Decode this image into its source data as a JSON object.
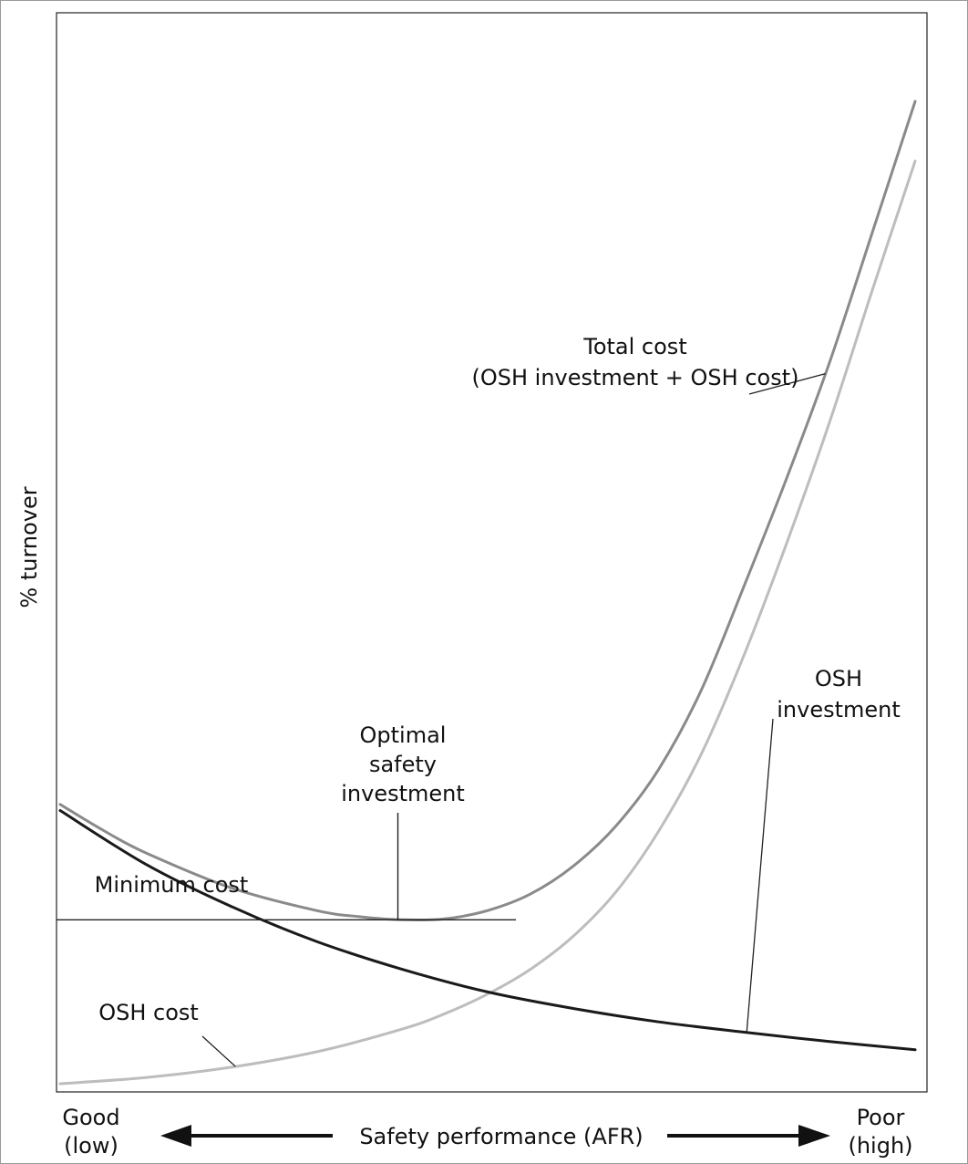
{
  "chart_data": {
    "type": "line",
    "title": "",
    "ylabel": "% turnover",
    "xlabel": "Safety performance (AFR)",
    "x_end_labels": {
      "left": [
        "Good",
        "(low)"
      ],
      "right": [
        "Poor",
        "(high)"
      ]
    },
    "xlim": [
      0,
      1
    ],
    "ylim": [
      0,
      1
    ],
    "grid": false,
    "legend": "none",
    "series": [
      {
        "key": "total",
        "color": "#8a8a8a",
        "x": [
          0,
          0.05,
          0.1,
          0.2,
          0.3,
          0.35,
          0.4,
          0.45,
          0.5,
          0.55,
          0.6,
          0.65,
          0.7,
          0.75,
          0.8,
          0.85,
          0.9,
          0.95,
          1.0
        ],
        "y": [
          0.271,
          0.246,
          0.224,
          0.19,
          0.168,
          0.162,
          0.159,
          0.16,
          0.168,
          0.184,
          0.211,
          0.25,
          0.305,
          0.382,
          0.483,
          0.588,
          0.7,
          0.826,
          0.953
        ]
      },
      {
        "key": "osh_cost",
        "color": "#bdbdbd",
        "x": [
          0,
          0.1,
          0.2,
          0.3,
          0.4,
          0.45,
          0.5,
          0.55,
          0.6,
          0.65,
          0.7,
          0.75,
          0.8,
          0.85,
          0.9,
          0.95,
          1.0
        ],
        "y": [
          0.0,
          0.006,
          0.016,
          0.031,
          0.053,
          0.068,
          0.087,
          0.111,
          0.143,
          0.186,
          0.245,
          0.32,
          0.416,
          0.525,
          0.642,
          0.77,
          0.895
        ]
      },
      {
        "key": "osh_investment",
        "color": "#1a1a1a",
        "x": [
          0,
          0.1,
          0.2,
          0.3,
          0.4,
          0.5,
          0.6,
          0.7,
          0.8,
          0.9,
          1.0
        ],
        "y": [
          0.265,
          0.213,
          0.172,
          0.138,
          0.111,
          0.089,
          0.073,
          0.06,
          0.05,
          0.041,
          0.033
        ]
      }
    ],
    "min_cost_level": 0.159,
    "optimal_x": 0.395,
    "annotations": [
      {
        "key": "total",
        "lines": [
          "Total cost",
          "(OSH investment + OSH cost)"
        ]
      },
      {
        "key": "optimal",
        "lines": [
          "Optimal",
          "safety",
          "investment"
        ]
      },
      {
        "key": "mincost",
        "lines": [
          "Minimum cost"
        ]
      },
      {
        "key": "invest",
        "lines": [
          "OSH",
          "investment"
        ]
      },
      {
        "key": "cost",
        "lines": [
          "OSH cost"
        ]
      }
    ]
  }
}
